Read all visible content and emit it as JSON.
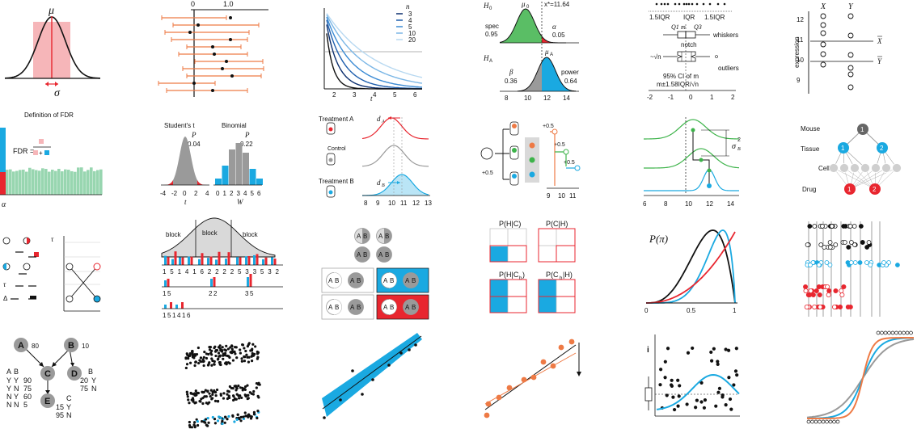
{
  "colors": {
    "red": "#e8262f",
    "blue": "#1aa9e1",
    "orange": "#ee7a45",
    "green": "#3db34a",
    "mint": "#98d6b0",
    "pink": "#f6b6b9",
    "gray": "#9a9a9a",
    "black": "#111111"
  },
  "panels": {
    "normal": {
      "mu": "μ",
      "sigma": "σ"
    },
    "ci": {
      "tick0": "0",
      "tick1": "1.0"
    },
    "t_curves": {
      "legend_title": "n",
      "legend": [
        "3",
        "4",
        "5",
        "10",
        "20"
      ],
      "xticks": [
        "2",
        "3",
        "4",
        "5",
        "6"
      ],
      "xlabel": "t"
    },
    "power": {
      "h0": "H",
      "h0_sub": "0",
      "mu0": "μ",
      "mu0_sub": "0",
      "xstar": "x*=11.64",
      "spec": "spec",
      "spec_val": "0.95",
      "alpha": "α",
      "alpha_val": "0.05",
      "ha": "H",
      "ha_sub": "A",
      "mua": "μ",
      "mua_sub": "A",
      "beta": "β",
      "beta_val": "0.36",
      "power": "power",
      "power_val": "0.64",
      "xticks": [
        "8",
        "10",
        "12",
        "14"
      ]
    },
    "boxplot": {
      "iqr_left": "1.5IQR",
      "iqr_mid": "IQR",
      "iqr_right": "1.5IQR",
      "q1m": "Q1",
      "m": "m",
      "q3": "Q3",
      "whiskers": "whiskers",
      "notch": "notch",
      "sqrtn": "~√n",
      "outliers": "outliers",
      "ci_line1": "95% CI of m",
      "ci_line2": "m±1.58IQR/√n",
      "xticks": [
        "-2",
        "-1",
        "0",
        "1",
        "2"
      ]
    },
    "paired": {
      "x": "X",
      "y": "Y",
      "ylabel": "expression",
      "yticks": [
        "12",
        "11",
        "10",
        "9"
      ],
      "xbar": "X",
      "ybar": "Y"
    },
    "fdr": {
      "title": "Definition of FDR",
      "label": "FDR =",
      "alpha": "α"
    },
    "students": {
      "t_title": "Student's t",
      "t_p": "P",
      "t_pval": "0.04",
      "t_ticks": [
        "-4",
        "-2",
        "0",
        "2",
        "4"
      ],
      "t_xlabel": "t",
      "b_title": "Binomial",
      "b_p": "P",
      "b_pval": "0.22",
      "b_ticks": [
        "0",
        "1",
        "2",
        "3",
        "4",
        "5",
        "6"
      ],
      "b_xlabel": "W"
    },
    "treatment": {
      "a": "Treatment A",
      "control": "Control",
      "b": "Treatment B",
      "da": "d",
      "da_sub": "A",
      "db": "d",
      "db_sub": "B",
      "xticks": [
        "8",
        "9",
        "10",
        "11",
        "12",
        "13"
      ]
    },
    "nested": {
      "plus_a": "+0.5",
      "plus_b": "+0.5",
      "plus_c": "+0.5",
      "plus_d": "+0.5",
      "xticks": [
        "9",
        "10",
        "11"
      ]
    },
    "variance": {
      "sigma": "σ",
      "sigma_sub": "B",
      "sigma_sup": "2",
      "xticks": [
        "6",
        "8",
        "10",
        "12",
        "14"
      ]
    },
    "hierarchy": {
      "mouse": "Mouse",
      "tissue": "Tissue",
      "cell": "Cell",
      "drug": "Drug",
      "n_mouse": "1",
      "n_t1": "1",
      "n_t2": "2",
      "n_d1": "1",
      "n_d2": "2"
    },
    "design": {
      "tau1": "τ",
      "tau2": "τ",
      "delta": "Δ"
    },
    "blocks": {
      "b1": "block",
      "b2": "block",
      "b3": "block",
      "row1": [
        "1",
        "5",
        "1",
        "4",
        "1",
        "6",
        "2",
        "2",
        "2",
        "2",
        "5",
        "3",
        "3",
        "5",
        "3",
        "2"
      ],
      "row2": [
        "1",
        "5",
        "2",
        "2",
        "3",
        "5"
      ],
      "row3": [
        "1",
        "5",
        "1",
        "4",
        "1",
        "6"
      ]
    },
    "ab": {
      "a": "A",
      "b": "B"
    },
    "bayes": {
      "p1": "P(H|C)",
      "p2": "P(C|H)",
      "p3": "P(H|C",
      "p3_sub": "b",
      "p3_end": ")",
      "p4": "P(C",
      "p4_sub": "b",
      "p4_end": "|H)"
    },
    "beta": {
      "label": "P(π)",
      "xticks": [
        "0",
        "0.5",
        "1"
      ]
    },
    "network": {
      "a": "A",
      "a_val": "80",
      "b": "B",
      "b_val": "10",
      "c": "C",
      "d": "D",
      "e": "E",
      "table_head": [
        "A",
        "B"
      ],
      "table_rows": [
        [
          "Y",
          "Y",
          "90"
        ],
        [
          "Y",
          "N",
          "75"
        ],
        [
          "N",
          "Y",
          "60"
        ],
        [
          "N",
          "N",
          "5"
        ]
      ],
      "d_head": "B",
      "d_rows": [
        [
          "20",
          "Y"
        ],
        [
          "75",
          "N"
        ]
      ],
      "e_head": "C",
      "e_rows": [
        [
          "15",
          "Y"
        ],
        [
          "95",
          "N"
        ]
      ]
    },
    "scatter_panel": {
      "label": "i"
    }
  }
}
